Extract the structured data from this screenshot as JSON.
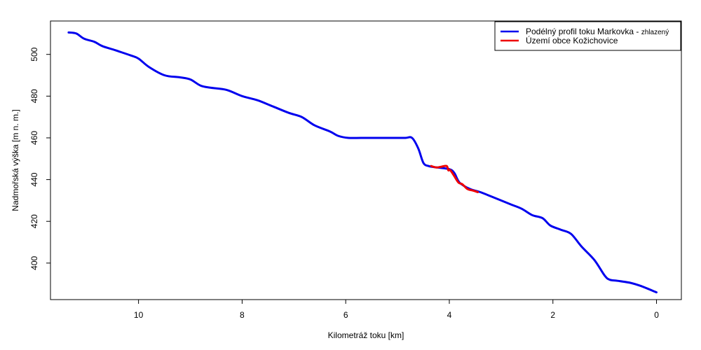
{
  "chart_data": {
    "type": "line",
    "xlabel": "Kilometráž toku [km]",
    "ylabel": "Nadmořská výška [m n. m.]",
    "xlim": [
      11.7,
      -0.48
    ],
    "ylim": [
      382.5,
      516
    ],
    "xticks": [
      10,
      8,
      6,
      4,
      2,
      0
    ],
    "yticks": [
      400,
      420,
      440,
      460,
      480,
      500
    ],
    "grid": false,
    "legend_position": "top-right",
    "legend": {
      "entry1_main": "Podélný profil toku Markovka - ",
      "entry1_small": "zhlazený",
      "entry2": "Území obce Kožichovice"
    },
    "series": [
      {
        "name": "Podélný profil toku Markovka - zhlazený",
        "color": "#0000ee",
        "x": [
          11.35,
          11.2,
          11.05,
          10.85,
          10.7,
          10.45,
          10.15,
          10.0,
          9.8,
          9.5,
          9.2,
          9.0,
          8.8,
          8.6,
          8.3,
          8.0,
          7.7,
          7.4,
          7.1,
          6.85,
          6.6,
          6.3,
          6.15,
          5.95,
          5.7,
          5.4,
          5.1,
          4.85,
          4.72,
          4.6,
          4.5,
          4.4,
          4.3,
          4.0,
          3.9,
          3.8,
          3.6,
          3.4,
          3.2,
          3.0,
          2.8,
          2.6,
          2.4,
          2.2,
          2.05,
          1.85,
          1.65,
          1.45,
          1.2,
          1.0,
          0.9,
          0.75,
          0.5,
          0.3,
          0.0
        ],
        "y": [
          510.5,
          510,
          507.5,
          506,
          504,
          502,
          499.5,
          498,
          494,
          490,
          489,
          488,
          485,
          484,
          483,
          480,
          478,
          475,
          472,
          470,
          466,
          463,
          461,
          460,
          460,
          460,
          460,
          460,
          460,
          455,
          448,
          446.5,
          446,
          445,
          443,
          438.5,
          435.5,
          434,
          432,
          430,
          428,
          426,
          423,
          421.5,
          418,
          416,
          414,
          408,
          401.5,
          394,
          392,
          391.5,
          390.5,
          389,
          386
        ]
      },
      {
        "name": "Území obce Kožichovice",
        "color": "#ee0000",
        "x": [
          4.35,
          4.25,
          4.15,
          4.05,
          4.02,
          3.98,
          3.9,
          3.82,
          3.75,
          3.65,
          3.55,
          3.45
        ],
        "y": [
          446.5,
          445.8,
          446.2,
          446.5,
          444.5,
          444.5,
          441.5,
          438.5,
          437.8,
          435.5,
          434.8,
          434
        ]
      }
    ]
  }
}
